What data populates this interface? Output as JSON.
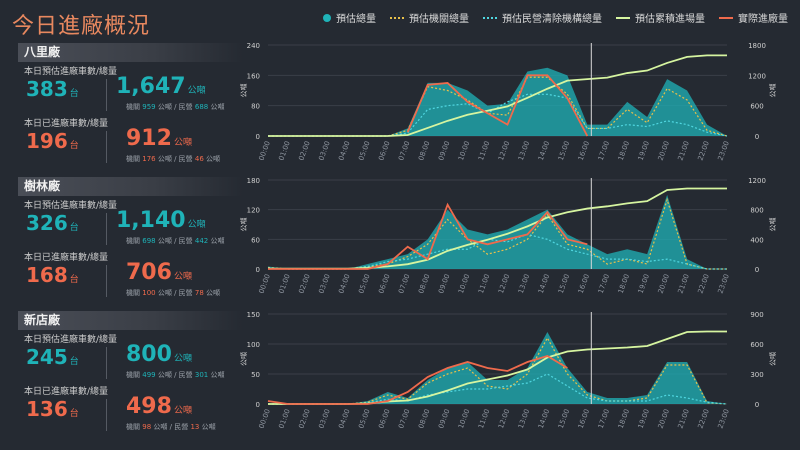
{
  "title": "今日進廠概況",
  "legend": [
    {
      "label": "預估總量",
      "type": "dot",
      "color": "#1fb3b8"
    },
    {
      "label": "預估機關總量",
      "type": "dotted",
      "color": "#e8c04a"
    },
    {
      "label": "預估民營清除機構總量",
      "type": "dotted",
      "color": "#4fd6e0"
    },
    {
      "label": "預估累積進場量",
      "type": "line",
      "color": "#d6f5a0"
    },
    {
      "label": "實際進廠量",
      "type": "line",
      "color": "#ef6a4c"
    }
  ],
  "panels": [
    {
      "name": "八里廠",
      "est_label": "本日預估進廠車數/總量",
      "est_count": "383",
      "count_unit": "台",
      "est_total": "1,647",
      "total_unit": "公噸",
      "est_sub_prefix": "機關",
      "est_sub_gov": "959",
      "est_sub_mid": "公噸 / 民營",
      "est_sub_priv": "688",
      "est_sub_suffix": "公噸",
      "act_label": "本日已進廠車數/總量",
      "act_count": "196",
      "act_total": "912",
      "act_sub_prefix": "機關",
      "act_sub_gov": "176",
      "act_sub_mid": "公噸 / 民營",
      "act_sub_priv": "46",
      "act_sub_suffix": "公噸"
    },
    {
      "name": "樹林廠",
      "est_label": "本日預估進廠車數/總量",
      "est_count": "326",
      "count_unit": "台",
      "est_total": "1,140",
      "total_unit": "公噸",
      "est_sub_prefix": "機關",
      "est_sub_gov": "698",
      "est_sub_mid": "公噸 / 民營",
      "est_sub_priv": "442",
      "est_sub_suffix": "公噸",
      "act_label": "本日已進廠車數/總量",
      "act_count": "168",
      "act_total": "706",
      "act_sub_prefix": "機關",
      "act_sub_gov": "100",
      "act_sub_mid": "公噸 / 民營",
      "act_sub_priv": "78",
      "act_sub_suffix": "公噸"
    },
    {
      "name": "新店廠",
      "est_label": "本日預估進廠車數/總量",
      "est_count": "245",
      "count_unit": "台",
      "est_total": "800",
      "total_unit": "公噸",
      "est_sub_prefix": "機關",
      "est_sub_gov": "499",
      "est_sub_mid": "公噸 / 民營",
      "est_sub_priv": "301",
      "est_sub_suffix": "公噸",
      "act_label": "本日已進廠車數/總量",
      "act_count": "136",
      "act_total": "498",
      "act_sub_prefix": "機關",
      "act_sub_gov": "98",
      "act_sub_mid": "公噸 / 民營",
      "act_sub_priv": "13",
      "act_sub_suffix": "公噸"
    }
  ],
  "chart_data": [
    {
      "type": "area",
      "plant": "八里廠",
      "x": [
        "00:00",
        "01:00",
        "02:00",
        "03:00",
        "04:00",
        "05:00",
        "06:00",
        "07:00",
        "08:00",
        "09:00",
        "10:00",
        "11:00",
        "12:00",
        "13:00",
        "14:00",
        "15:00",
        "16:00",
        "17:00",
        "18:00",
        "19:00",
        "20:00",
        "21:00",
        "22:00",
        "23:00"
      ],
      "ylabel": "公噸",
      "y2label": "公噸",
      "ylim": [
        0,
        240
      ],
      "yticks": [
        0,
        80,
        160,
        240
      ],
      "y2lim": [
        0,
        1800
      ],
      "y2ticks": [
        0,
        600,
        1200,
        1800
      ],
      "now": "16:00",
      "series": [
        {
          "name": "預估總量",
          "values": [
            0,
            0,
            0,
            0,
            0,
            0,
            0,
            20,
            140,
            140,
            120,
            80,
            85,
            170,
            180,
            160,
            30,
            30,
            90,
            50,
            150,
            120,
            30,
            0
          ]
        },
        {
          "name": "預估機關總量",
          "values": [
            0,
            0,
            0,
            0,
            0,
            0,
            0,
            15,
            130,
            120,
            95,
            60,
            55,
            155,
            155,
            110,
            20,
            20,
            70,
            35,
            125,
            95,
            15,
            0
          ]
        },
        {
          "name": "預估民營清除機構總量",
          "values": [
            0,
            0,
            0,
            0,
            0,
            0,
            0,
            8,
            70,
            80,
            85,
            60,
            90,
            110,
            110,
            100,
            20,
            20,
            30,
            25,
            40,
            30,
            10,
            0
          ]
        },
        {
          "name": "預估累積進場量",
          "values": [
            0,
            0,
            0,
            0,
            0,
            0,
            0,
            20,
            160,
            300,
            420,
            500,
            585,
            755,
            935,
            1095,
            1125,
            1155,
            1245,
            1295,
            1445,
            1565,
            1595,
            1595
          ]
        },
        {
          "name": "實際進廠量",
          "values": [
            null,
            null,
            null,
            null,
            null,
            null,
            null,
            10,
            135,
            140,
            90,
            60,
            30,
            160,
            160,
            100,
            0,
            null,
            null,
            null,
            null,
            null,
            null,
            null
          ]
        }
      ]
    },
    {
      "type": "area",
      "plant": "樹林廠",
      "x": [
        "00:00",
        "01:00",
        "02:00",
        "03:00",
        "04:00",
        "05:00",
        "06:00",
        "07:00",
        "08:00",
        "09:00",
        "10:00",
        "11:00",
        "12:00",
        "13:00",
        "14:00",
        "15:00",
        "16:00",
        "17:00",
        "18:00",
        "19:00",
        "20:00",
        "21:00",
        "22:00",
        "23:00"
      ],
      "ylabel": "公噸",
      "y2label": "公噸",
      "ylim": [
        0,
        180
      ],
      "yticks": [
        0,
        60,
        120,
        180
      ],
      "y2lim": [
        0,
        1200
      ],
      "y2ticks": [
        0,
        400,
        800,
        1200
      ],
      "now": "16:00",
      "series": [
        {
          "name": "預估總量",
          "values": [
            5,
            0,
            0,
            0,
            0,
            10,
            20,
            30,
            60,
            120,
            80,
            70,
            80,
            100,
            120,
            70,
            50,
            30,
            40,
            30,
            150,
            20,
            0,
            0
          ]
        },
        {
          "name": "預估機關總量",
          "values": [
            3,
            0,
            0,
            0,
            0,
            5,
            10,
            25,
            50,
            100,
            60,
            30,
            40,
            60,
            110,
            50,
            40,
            10,
            20,
            10,
            140,
            10,
            0,
            0
          ]
        },
        {
          "name": "預估民營清除機構總量",
          "values": [
            2,
            0,
            0,
            0,
            0,
            5,
            15,
            20,
            30,
            40,
            40,
            60,
            55,
            70,
            60,
            40,
            30,
            20,
            20,
            15,
            20,
            10,
            0,
            0
          ]
        },
        {
          "name": "預估累積進場量",
          "values": [
            5,
            5,
            5,
            5,
            5,
            15,
            35,
            65,
            125,
            245,
            325,
            395,
            475,
            575,
            695,
            765,
            815,
            845,
            885,
            915,
            1065,
            1085,
            1085,
            1085
          ]
        },
        {
          "name": "實際進廠量",
          "values": [
            0,
            0,
            0,
            0,
            0,
            0,
            10,
            45,
            20,
            130,
            60,
            50,
            60,
            70,
            115,
            60,
            50,
            null,
            null,
            null,
            null,
            null,
            null,
            null
          ]
        }
      ]
    },
    {
      "type": "area",
      "plant": "新店廠",
      "x": [
        "00:00",
        "01:00",
        "02:00",
        "03:00",
        "04:00",
        "05:00",
        "06:00",
        "07:00",
        "08:00",
        "09:00",
        "10:00",
        "11:00",
        "12:00",
        "13:00",
        "14:00",
        "15:00",
        "16:00",
        "17:00",
        "18:00",
        "19:00",
        "20:00",
        "21:00",
        "22:00",
        "23:00"
      ],
      "ylabel": "公噸",
      "y2label": "公噸",
      "ylim": [
        0,
        150
      ],
      "yticks": [
        0,
        50,
        100,
        150
      ],
      "y2lim": [
        0,
        900
      ],
      "y2ticks": [
        0,
        300,
        600,
        900
      ],
      "now": "16:00",
      "series": [
        {
          "name": "預估總量",
          "values": [
            0,
            0,
            0,
            0,
            0,
            5,
            20,
            10,
            40,
            60,
            70,
            40,
            40,
            60,
            120,
            60,
            20,
            10,
            10,
            15,
            70,
            70,
            5,
            0
          ]
        },
        {
          "name": "預估機關總量",
          "values": [
            0,
            0,
            0,
            0,
            0,
            3,
            15,
            8,
            35,
            50,
            60,
            30,
            25,
            50,
            110,
            50,
            15,
            5,
            5,
            10,
            65,
            65,
            2,
            0
          ]
        },
        {
          "name": "預估民營清除機構總量",
          "values": [
            0,
            0,
            0,
            0,
            0,
            2,
            8,
            5,
            15,
            20,
            25,
            25,
            30,
            35,
            50,
            30,
            10,
            5,
            5,
            5,
            15,
            10,
            3,
            0
          ]
        },
        {
          "name": "預估累積進場量",
          "values": [
            0,
            0,
            0,
            0,
            0,
            5,
            25,
            35,
            75,
            135,
            205,
            245,
            285,
            345,
            465,
            525,
            545,
            555,
            565,
            580,
            650,
            720,
            725,
            725
          ]
        },
        {
          "name": "實際進廠量",
          "values": [
            5,
            0,
            0,
            0,
            0,
            0,
            5,
            20,
            45,
            60,
            70,
            60,
            55,
            70,
            80,
            60,
            null,
            null,
            null,
            null,
            null,
            null,
            null,
            null
          ]
        }
      ]
    }
  ]
}
